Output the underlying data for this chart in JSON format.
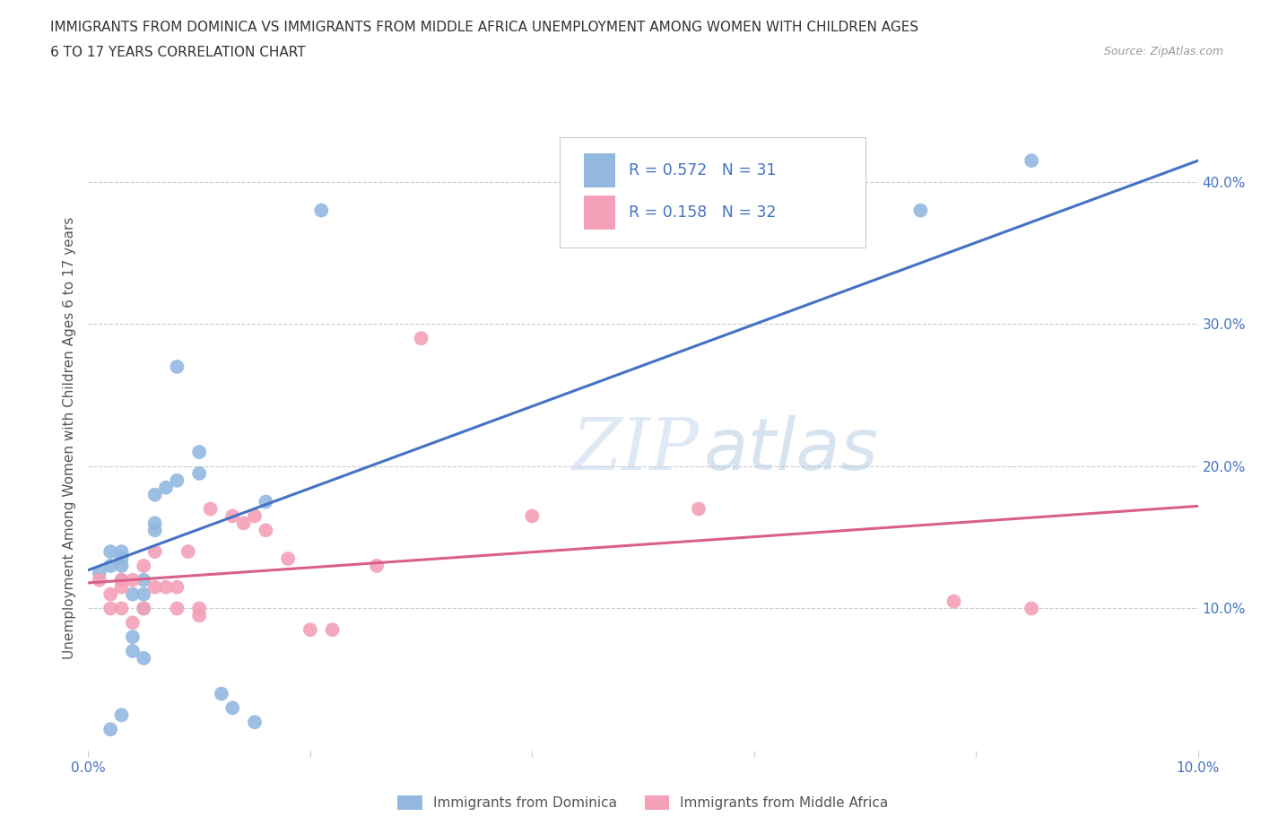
{
  "title_line1": "IMMIGRANTS FROM DOMINICA VS IMMIGRANTS FROM MIDDLE AFRICA UNEMPLOYMENT AMONG WOMEN WITH CHILDREN AGES",
  "title_line2": "6 TO 17 YEARS CORRELATION CHART",
  "source_text": "Source: ZipAtlas.com",
  "ylabel": "Unemployment Among Women with Children Ages 6 to 17 years",
  "blue_color": "#92b8e0",
  "pink_color": "#f4a0b8",
  "blue_line_color": "#4472c4",
  "pink_line_color": "#d9608a",
  "xlim": [
    0.0,
    0.1
  ],
  "ylim": [
    0.0,
    0.44
  ],
  "blue_line_x": [
    0.0,
    0.1
  ],
  "blue_line_y": [
    0.127,
    0.415
  ],
  "pink_line_x": [
    0.0,
    0.1
  ],
  "pink_line_y": [
    0.118,
    0.172
  ],
  "dominica_x": [
    0.001,
    0.002,
    0.002,
    0.003,
    0.003,
    0.003,
    0.003,
    0.004,
    0.004,
    0.004,
    0.005,
    0.005,
    0.005,
    0.005,
    0.006,
    0.006,
    0.006,
    0.007,
    0.008,
    0.008,
    0.01,
    0.01,
    0.012,
    0.013,
    0.015,
    0.016,
    0.021,
    0.075,
    0.085,
    0.002,
    0.003
  ],
  "dominica_y": [
    0.125,
    0.13,
    0.14,
    0.12,
    0.13,
    0.135,
    0.14,
    0.07,
    0.08,
    0.11,
    0.065,
    0.1,
    0.11,
    0.12,
    0.155,
    0.16,
    0.18,
    0.185,
    0.19,
    0.27,
    0.195,
    0.21,
    0.04,
    0.03,
    0.02,
    0.175,
    0.38,
    0.38,
    0.415,
    0.015,
    0.025
  ],
  "middle_africa_x": [
    0.001,
    0.002,
    0.002,
    0.003,
    0.003,
    0.003,
    0.004,
    0.004,
    0.005,
    0.005,
    0.006,
    0.006,
    0.007,
    0.008,
    0.008,
    0.009,
    0.01,
    0.01,
    0.011,
    0.013,
    0.014,
    0.015,
    0.016,
    0.018,
    0.02,
    0.022,
    0.026,
    0.03,
    0.04,
    0.055,
    0.078,
    0.085
  ],
  "middle_africa_y": [
    0.12,
    0.1,
    0.11,
    0.1,
    0.115,
    0.12,
    0.09,
    0.12,
    0.1,
    0.13,
    0.115,
    0.14,
    0.115,
    0.1,
    0.115,
    0.14,
    0.095,
    0.1,
    0.17,
    0.165,
    0.16,
    0.165,
    0.155,
    0.135,
    0.085,
    0.085,
    0.13,
    0.29,
    0.165,
    0.17,
    0.105,
    0.1
  ],
  "grid_color": "#cccccc",
  "tick_color": "#4472c4",
  "label_color": "#555555",
  "watermark_color": "#c5d8ee"
}
